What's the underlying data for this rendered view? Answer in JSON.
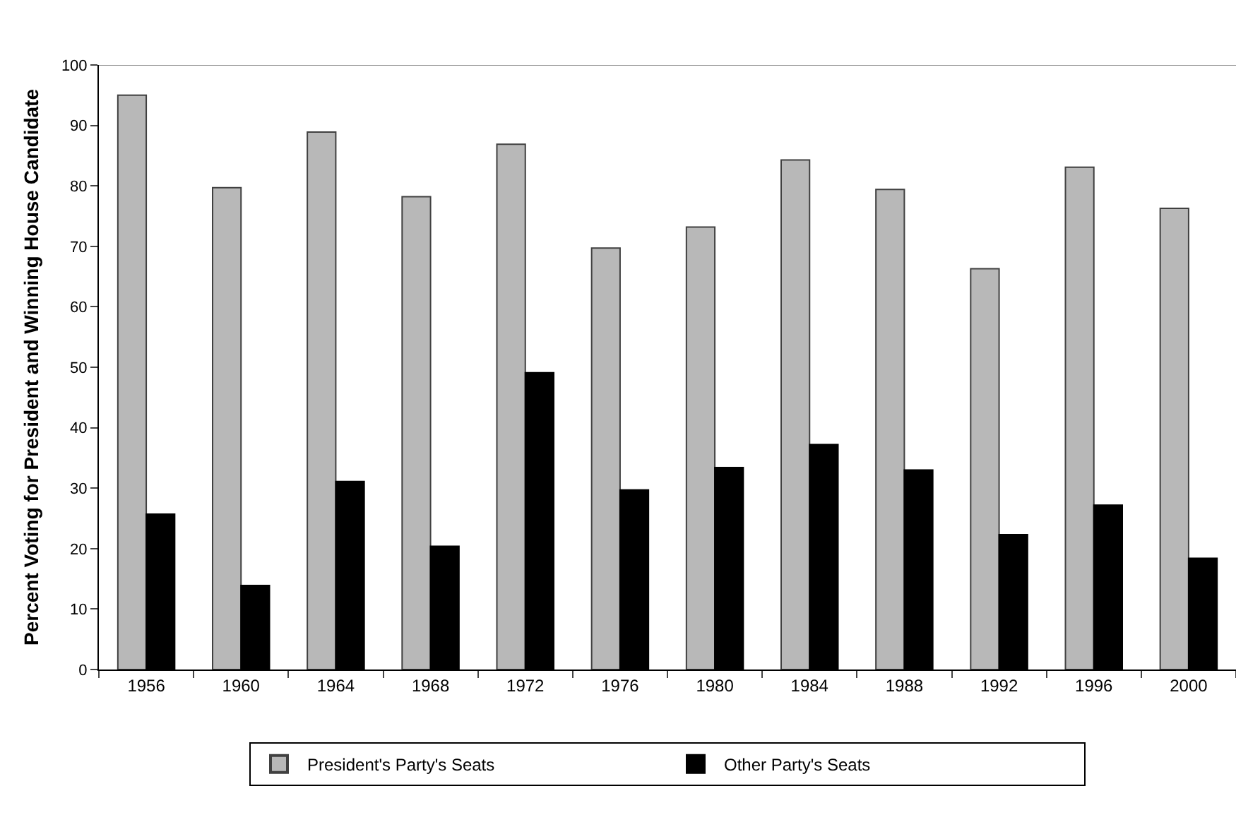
{
  "chart_data": {
    "type": "bar",
    "ylabel": "Percent Voting for President and Winning House Candidate",
    "categories": [
      "1956",
      "1960",
      "1964",
      "1968",
      "1972",
      "1976",
      "1980",
      "1984",
      "1988",
      "1992",
      "1996",
      "2000"
    ],
    "series": [
      {
        "name": "President's Party's Seats",
        "color": "#b8b8b8",
        "values": [
          95.0,
          79.7,
          88.9,
          78.2,
          86.9,
          69.7,
          73.2,
          84.3,
          79.4,
          66.3,
          83.1,
          76.3
        ]
      },
      {
        "name": "Other Party's Seats",
        "color": "#000000",
        "values": [
          25.7,
          13.9,
          31.1,
          20.4,
          49.1,
          29.7,
          33.4,
          37.2,
          33.0,
          22.3,
          27.2,
          18.4
        ]
      }
    ],
    "ylim": [
      0,
      100
    ],
    "yticks": [
      0,
      10,
      20,
      30,
      40,
      50,
      60,
      70,
      80,
      90,
      100
    ],
    "legend": "bottom"
  }
}
